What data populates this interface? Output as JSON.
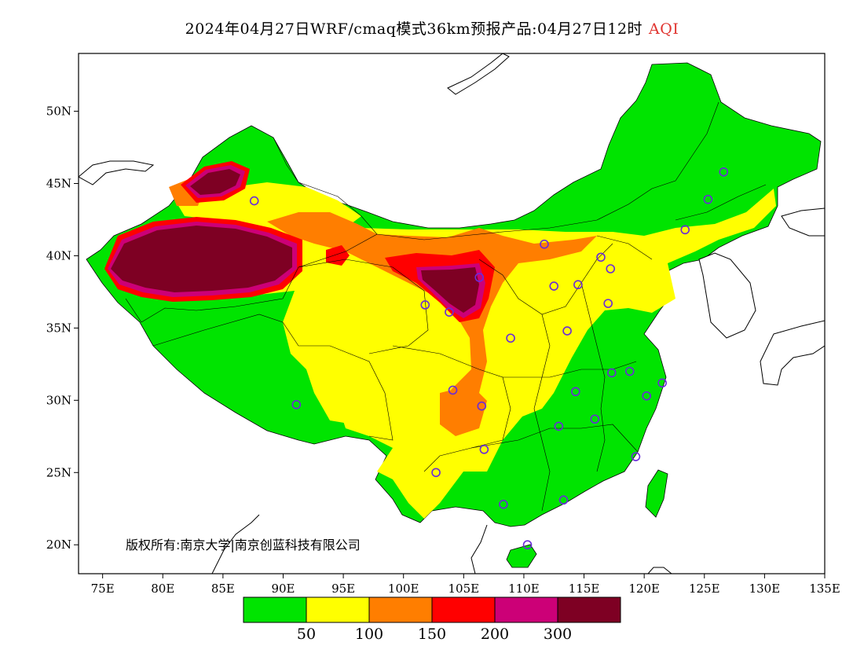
{
  "header": {
    "title": "2024年04月27日WRF/cmaq模式36km预报产品:04月27日12时",
    "variable": "AQI"
  },
  "map": {
    "lon_range": [
      73,
      135
    ],
    "lat_range": [
      18,
      54
    ],
    "lon_ticks": [
      {
        "value": 75,
        "label": "75E"
      },
      {
        "value": 80,
        "label": "80E"
      },
      {
        "value": 85,
        "label": "85E"
      },
      {
        "value": 90,
        "label": "90E"
      },
      {
        "value": 95,
        "label": "95E"
      },
      {
        "value": 100,
        "label": "100E"
      },
      {
        "value": 105,
        "label": "105E"
      },
      {
        "value": 110,
        "label": "110E"
      },
      {
        "value": 115,
        "label": "115E"
      },
      {
        "value": 120,
        "label": "120E"
      },
      {
        "value": 125,
        "label": "125E"
      },
      {
        "value": 130,
        "label": "130E"
      },
      {
        "value": 135,
        "label": "135E"
      }
    ],
    "lat_ticks": [
      {
        "value": 50,
        "label": "50N"
      },
      {
        "value": 45,
        "label": "45N"
      },
      {
        "value": 40,
        "label": "40N"
      },
      {
        "value": 35,
        "label": "35N"
      },
      {
        "value": 30,
        "label": "30N"
      },
      {
        "value": 25,
        "label": "25N"
      },
      {
        "value": 20,
        "label": "20N"
      }
    ],
    "copyright": "版权所有:南京大学|南京创蓝科技有限公司",
    "stations": [
      [
        87.6,
        43.8
      ],
      [
        101.8,
        36.6
      ],
      [
        103.8,
        36.1
      ],
      [
        106.3,
        38.5
      ],
      [
        111.7,
        40.8
      ],
      [
        116.4,
        39.9
      ],
      [
        117.2,
        39.1
      ],
      [
        114.5,
        38.0
      ],
      [
        112.5,
        37.9
      ],
      [
        117.0,
        36.7
      ],
      [
        113.6,
        34.8
      ],
      [
        108.9,
        34.3
      ],
      [
        104.1,
        30.7
      ],
      [
        106.5,
        29.6
      ],
      [
        114.3,
        30.6
      ],
      [
        117.3,
        31.9
      ],
      [
        118.8,
        32.0
      ],
      [
        121.5,
        31.2
      ],
      [
        120.2,
        30.3
      ],
      [
        112.9,
        28.2
      ],
      [
        115.9,
        28.7
      ],
      [
        106.7,
        26.6
      ],
      [
        102.7,
        25.0
      ],
      [
        119.3,
        26.1
      ],
      [
        108.3,
        22.8
      ],
      [
        113.3,
        23.1
      ],
      [
        110.3,
        20.0
      ],
      [
        91.1,
        29.7
      ],
      [
        123.4,
        41.8
      ],
      [
        125.3,
        43.9
      ],
      [
        126.6,
        45.8
      ]
    ]
  },
  "legend": {
    "colors": [
      "#00e400",
      "#ffff00",
      "#ff7e00",
      "#ff0000",
      "#cc0077",
      "#7e0023"
    ],
    "breaks": [
      "50",
      "100",
      "150",
      "200",
      "300"
    ]
  }
}
